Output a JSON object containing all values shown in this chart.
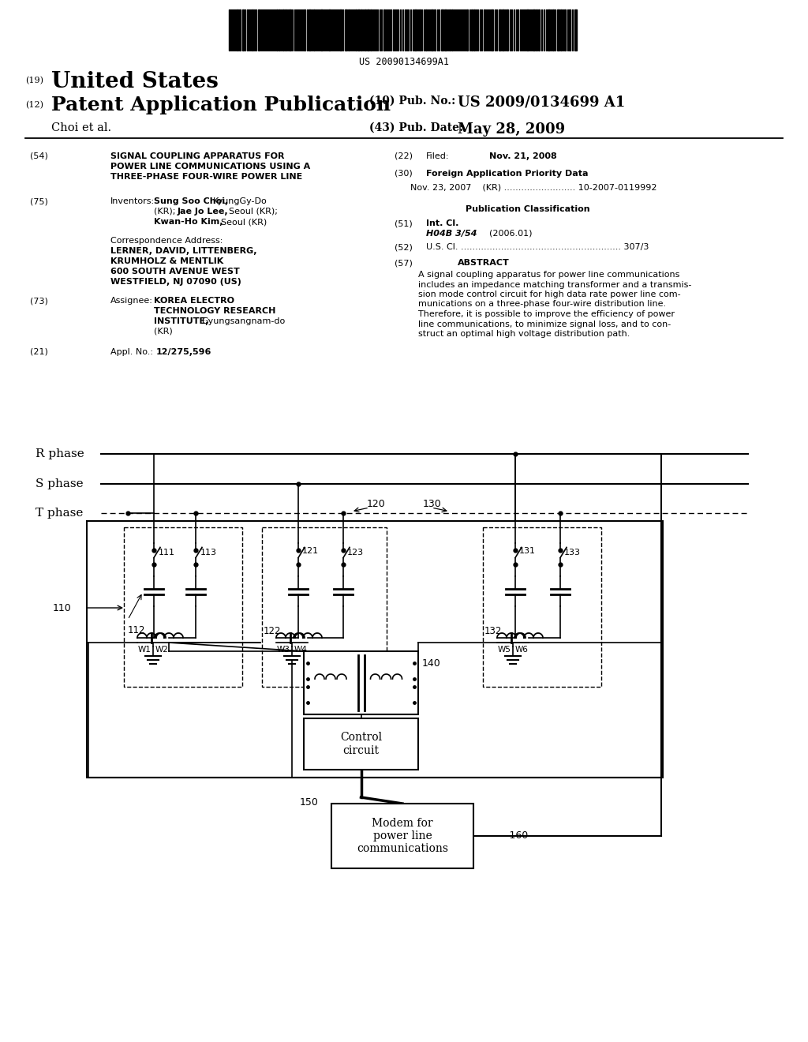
{
  "bg_color": "#ffffff",
  "barcode_text": "US 20090134699A1",
  "r_phase_label": "R phase",
  "s_phase_label": "S phase",
  "t_phase_label": "T phase",
  "label_110": "110",
  "label_111": "111",
  "label_112": "112",
  "label_113": "113",
  "label_120": "120",
  "label_121": "121",
  "label_122": "122",
  "label_123": "123",
  "label_130": "130",
  "label_131": "131",
  "label_132": "132",
  "label_133": "133",
  "label_140": "140",
  "label_150": "150",
  "label_160": "160",
  "control_circuit_text": "Control\ncircuit",
  "modem_text": "Modem for\npower line\ncommunications",
  "W1": "W1",
  "W2": "W2",
  "W3": "W3",
  "W4": "W4",
  "W5": "W5",
  "W6": "W6"
}
